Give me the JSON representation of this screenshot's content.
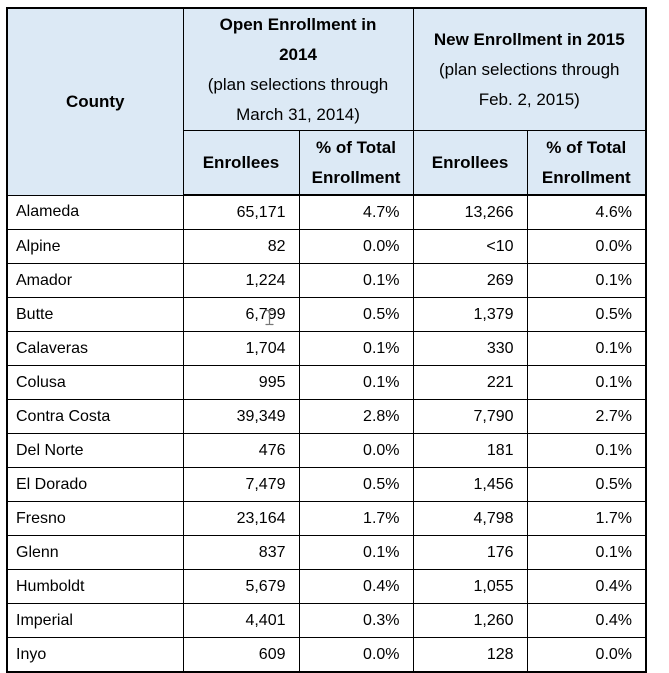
{
  "table": {
    "header": {
      "county_label": "County",
      "group_2014": {
        "title": "Open Enrollment in\n2014",
        "subtitle": "(plan selections through\nMarch 31, 2014)"
      },
      "group_2015": {
        "title": "New Enrollment in 2015",
        "subtitle": "(plan selections through\nFeb. 2, 2015)"
      },
      "sub_columns": {
        "enrollees": "Enrollees",
        "pct_total": "% of Total\nEnrollment"
      }
    },
    "rows": [
      {
        "county": "Alameda",
        "enrollees_2014": "65,171",
        "pct_2014": "4.7%",
        "enrollees_2015": "13,266",
        "pct_2015": "4.6%"
      },
      {
        "county": "Alpine",
        "enrollees_2014": "82",
        "pct_2014": "0.0%",
        "enrollees_2015": "<10",
        "pct_2015": "0.0%"
      },
      {
        "county": "Amador",
        "enrollees_2014": "1,224",
        "pct_2014": "0.1%",
        "enrollees_2015": "269",
        "pct_2015": "0.1%"
      },
      {
        "county": "Butte",
        "enrollees_2014": "6,799",
        "pct_2014": "0.5%",
        "enrollees_2015": "1,379",
        "pct_2015": "0.5%"
      },
      {
        "county": "Calaveras",
        "enrollees_2014": "1,704",
        "pct_2014": "0.1%",
        "enrollees_2015": "330",
        "pct_2015": "0.1%"
      },
      {
        "county": "Colusa",
        "enrollees_2014": "995",
        "pct_2014": "0.1%",
        "enrollees_2015": "221",
        "pct_2015": "0.1%"
      },
      {
        "county": "Contra Costa",
        "enrollees_2014": "39,349",
        "pct_2014": "2.8%",
        "enrollees_2015": "7,790",
        "pct_2015": "2.7%"
      },
      {
        "county": "Del Norte",
        "enrollees_2014": "476",
        "pct_2014": "0.0%",
        "enrollees_2015": "181",
        "pct_2015": "0.1%"
      },
      {
        "county": "El Dorado",
        "enrollees_2014": "7,479",
        "pct_2014": "0.5%",
        "enrollees_2015": "1,456",
        "pct_2015": "0.5%"
      },
      {
        "county": "Fresno",
        "enrollees_2014": "23,164",
        "pct_2014": "1.7%",
        "enrollees_2015": "4,798",
        "pct_2015": "1.7%"
      },
      {
        "county": "Glenn",
        "enrollees_2014": "837",
        "pct_2014": "0.1%",
        "enrollees_2015": "176",
        "pct_2015": "0.1%"
      },
      {
        "county": "Humboldt",
        "enrollees_2014": "5,679",
        "pct_2014": "0.4%",
        "enrollees_2015": "1,055",
        "pct_2015": "0.4%"
      },
      {
        "county": "Imperial",
        "enrollees_2014": "4,401",
        "pct_2014": "0.3%",
        "enrollees_2015": "1,260",
        "pct_2015": "0.4%"
      },
      {
        "county": "Inyo",
        "enrollees_2014": "609",
        "pct_2014": "0.0%",
        "enrollees_2015": "128",
        "pct_2015": "0.0%"
      }
    ]
  },
  "colors": {
    "header_bg": "#dce9f5",
    "border": "#000000",
    "text": "#000000",
    "cursor_gray": "#777777"
  }
}
